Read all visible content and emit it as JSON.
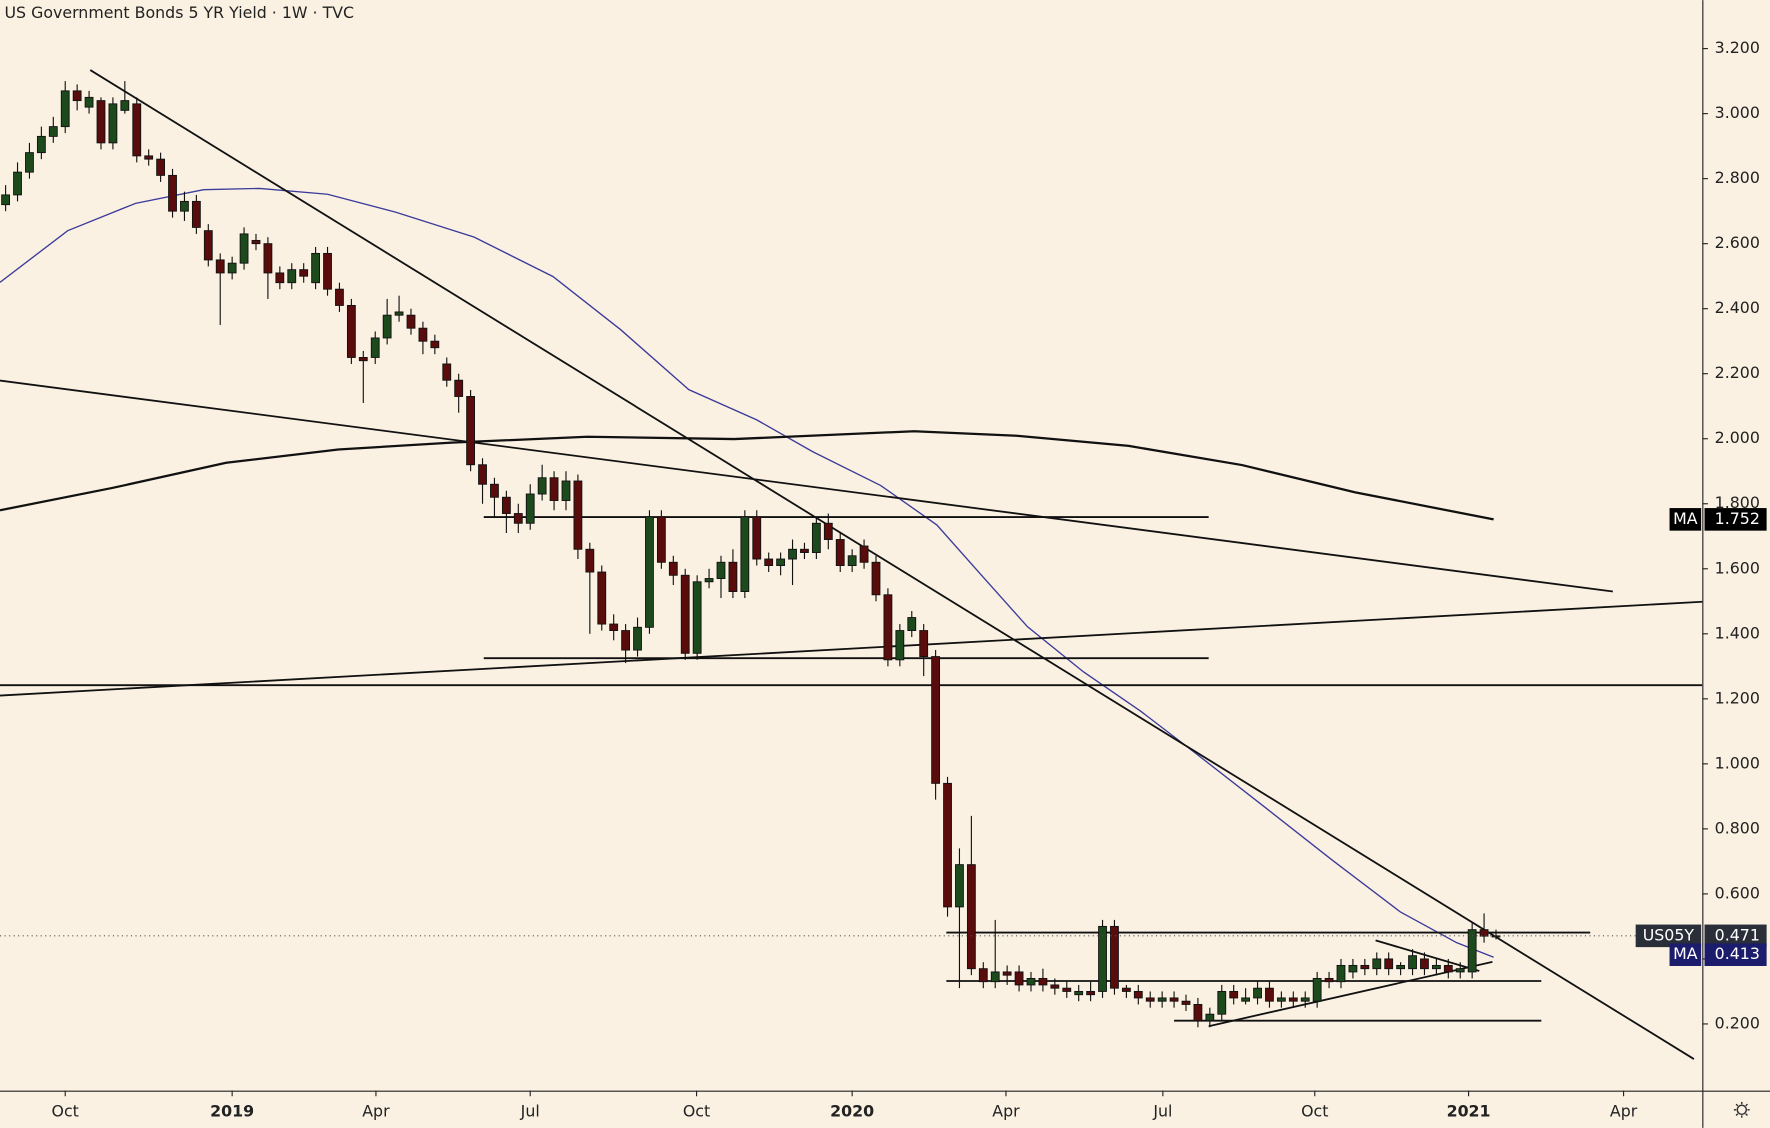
{
  "chart_data": {
    "type": "candlestick",
    "title": "US Government Bonds 5 YR Yield · 1W · TVC",
    "up_color": "#1d4a1d",
    "down_color": "#5a0c0c",
    "open": [
      2.72,
      2.75,
      2.82,
      2.88,
      2.93,
      2.96,
      3.07,
      3.02,
      3.04,
      2.91,
      3.01,
      3.03,
      2.87,
      2.86,
      2.81,
      2.7,
      2.73,
      2.64,
      2.55,
      2.51,
      2.54,
      2.61,
      2.6,
      2.51,
      2.48,
      2.52,
      2.48,
      2.57,
      2.46,
      2.41,
      2.25,
      2.25,
      2.31,
      2.38,
      2.38,
      2.34,
      2.3,
      2.23,
      2.18,
      2.13,
      1.92,
      1.86,
      1.82,
      1.77,
      1.74,
      1.83,
      1.88,
      1.81,
      1.87,
      1.66,
      1.59,
      1.43,
      1.41,
      1.35,
      1.42,
      1.76,
      1.62,
      1.58,
      1.34,
      1.56,
      1.57,
      1.62,
      1.53,
      1.76,
      1.63,
      1.61,
      1.63,
      1.66,
      1.65,
      1.74,
      1.69,
      1.61,
      1.67,
      1.62,
      1.52,
      1.32,
      1.41,
      1.41,
      1.33,
      0.94,
      0.56,
      0.69,
      0.37,
      0.33,
      0.36,
      0.36,
      0.32,
      0.34,
      0.32,
      0.31,
      0.29,
      0.3,
      0.3,
      0.5,
      0.31,
      0.3,
      0.28,
      0.27,
      0.28,
      0.27,
      0.26,
      0.21,
      0.23,
      0.3,
      0.27,
      0.28,
      0.31,
      0.27,
      0.28,
      0.27,
      0.27,
      0.34,
      0.33,
      0.36,
      0.38,
      0.37,
      0.4,
      0.37,
      0.37,
      0.4,
      0.37,
      0.38,
      0.36,
      0.36,
      0.49,
      0.47
    ],
    "high": [
      2.78,
      2.85,
      2.91,
      2.96,
      2.99,
      3.1,
      3.09,
      3.07,
      3.05,
      3.05,
      3.1,
      3.05,
      2.89,
      2.88,
      2.83,
      2.76,
      2.75,
      2.66,
      2.57,
      2.56,
      2.65,
      2.63,
      2.62,
      2.53,
      2.54,
      2.54,
      2.59,
      2.59,
      2.48,
      2.43,
      2.27,
      2.33,
      2.43,
      2.44,
      2.4,
      2.36,
      2.32,
      2.25,
      2.2,
      2.15,
      1.94,
      1.88,
      1.84,
      1.8,
      1.86,
      1.92,
      1.9,
      1.9,
      1.89,
      1.68,
      1.61,
      1.46,
      1.43,
      1.45,
      1.78,
      1.78,
      1.64,
      1.6,
      1.58,
      1.6,
      1.64,
      1.66,
      1.78,
      1.78,
      1.65,
      1.65,
      1.69,
      1.68,
      1.76,
      1.77,
      1.71,
      1.66,
      1.69,
      1.64,
      1.54,
      1.43,
      1.47,
      1.43,
      1.35,
      0.96,
      0.74,
      0.84,
      0.39,
      0.52,
      0.38,
      0.38,
      0.36,
      0.37,
      0.34,
      0.33,
      0.32,
      0.33,
      0.52,
      0.52,
      0.32,
      0.32,
      0.3,
      0.3,
      0.3,
      0.29,
      0.28,
      0.25,
      0.32,
      0.32,
      0.31,
      0.33,
      0.33,
      0.3,
      0.3,
      0.3,
      0.36,
      0.36,
      0.4,
      0.4,
      0.4,
      0.42,
      0.42,
      0.39,
      0.43,
      0.42,
      0.4,
      0.4,
      0.39,
      0.51,
      0.54,
      0.49
    ],
    "low": [
      2.7,
      2.73,
      2.8,
      2.86,
      2.91,
      2.94,
      3.01,
      3.0,
      2.89,
      2.89,
      3.0,
      2.85,
      2.84,
      2.79,
      2.68,
      2.67,
      2.63,
      2.53,
      2.35,
      2.49,
      2.52,
      2.58,
      2.43,
      2.46,
      2.46,
      2.48,
      2.46,
      2.44,
      2.39,
      2.23,
      2.11,
      2.23,
      2.29,
      2.36,
      2.32,
      2.26,
      2.26,
      2.16,
      2.08,
      1.9,
      1.8,
      1.76,
      1.71,
      1.71,
      1.72,
      1.81,
      1.78,
      1.78,
      1.63,
      1.4,
      1.41,
      1.38,
      1.31,
      1.33,
      1.4,
      1.6,
      1.55,
      1.32,
      1.32,
      1.54,
      1.51,
      1.51,
      1.51,
      1.61,
      1.59,
      1.58,
      1.55,
      1.63,
      1.63,
      1.66,
      1.59,
      1.59,
      1.6,
      1.5,
      1.3,
      1.3,
      1.39,
      1.27,
      0.89,
      0.53,
      0.31,
      0.35,
      0.31,
      0.31,
      0.32,
      0.3,
      0.3,
      0.3,
      0.29,
      0.28,
      0.27,
      0.27,
      0.28,
      0.29,
      0.28,
      0.26,
      0.25,
      0.25,
      0.25,
      0.24,
      0.19,
      0.19,
      0.21,
      0.26,
      0.26,
      0.26,
      0.25,
      0.25,
      0.25,
      0.25,
      0.25,
      0.31,
      0.31,
      0.34,
      0.35,
      0.35,
      0.35,
      0.35,
      0.35,
      0.35,
      0.35,
      0.34,
      0.34,
      0.34,
      0.45,
      0.46
    ],
    "close": [
      2.75,
      2.82,
      2.88,
      2.93,
      2.96,
      3.07,
      3.04,
      3.05,
      2.91,
      3.03,
      3.04,
      2.87,
      2.86,
      2.81,
      2.7,
      2.73,
      2.65,
      2.55,
      2.51,
      2.54,
      2.63,
      2.6,
      2.51,
      2.48,
      2.52,
      2.5,
      2.57,
      2.46,
      2.41,
      2.25,
      2.24,
      2.31,
      2.38,
      2.39,
      2.34,
      2.3,
      2.28,
      2.18,
      2.13,
      1.92,
      1.86,
      1.82,
      1.77,
      1.74,
      1.83,
      1.88,
      1.81,
      1.87,
      1.66,
      1.59,
      1.43,
      1.41,
      1.35,
      1.42,
      1.76,
      1.62,
      1.58,
      1.34,
      1.56,
      1.57,
      1.62,
      1.53,
      1.76,
      1.63,
      1.61,
      1.63,
      1.66,
      1.65,
      1.74,
      1.69,
      1.61,
      1.64,
      1.62,
      1.52,
      1.32,
      1.41,
      1.45,
      1.33,
      0.94,
      0.56,
      0.69,
      0.37,
      0.33,
      0.36,
      0.35,
      0.32,
      0.34,
      0.32,
      0.31,
      0.3,
      0.3,
      0.29,
      0.5,
      0.31,
      0.3,
      0.28,
      0.27,
      0.28,
      0.27,
      0.26,
      0.21,
      0.23,
      0.3,
      0.28,
      0.28,
      0.31,
      0.27,
      0.28,
      0.27,
      0.28,
      0.34,
      0.33,
      0.38,
      0.38,
      0.37,
      0.4,
      0.37,
      0.38,
      0.41,
      0.37,
      0.38,
      0.36,
      0.37,
      0.49,
      0.47,
      0.471
    ],
    "moving_averages": [
      {
        "name": "MA",
        "color": "#3b3b9a",
        "x": [
          -0.47,
          5.21,
          10.9,
          16.6,
          21.3,
          27.0,
          32.7,
          39.3,
          45.9,
          51.6,
          57.3,
          63.0,
          67.7,
          73.4,
          78.1,
          81.9,
          85.7,
          90.4,
          95.2,
          99.9,
          105.6,
          111.3,
          117.0,
          121.7,
          124.8
        ],
        "values": [
          2.481,
          2.64,
          2.724,
          2.766,
          2.77,
          2.752,
          2.697,
          2.62,
          2.499,
          2.335,
          2.151,
          2.058,
          1.96,
          1.856,
          1.735,
          1.578,
          1.422,
          1.283,
          1.162,
          1.03,
          0.867,
          0.703,
          0.544,
          0.45,
          0.405
        ]
      },
      {
        "name": "MA",
        "color": "#111111",
        "x": [
          -0.47,
          9.0,
          18.5,
          27.9,
          37.4,
          48.8,
          61.1,
          76.2,
          84.8,
          94.2,
          103.7,
          113.2,
          124.8
        ],
        "values": [
          1.78,
          1.849,
          1.926,
          1.967,
          1.988,
          2.006,
          1.999,
          2.023,
          2.009,
          1.978,
          1.919,
          1.835,
          1.752
        ]
      }
    ],
    "trendlines": [
      {
        "x": [
          7.1,
          141.6
        ],
        "values": [
          3.134,
          0.092
        ]
      },
      {
        "x": [
          -0.47,
          134.8
        ],
        "values": [
          2.179,
          1.53
        ]
      },
      {
        "x": [
          -0.47,
          142.5
        ],
        "values": [
          1.21,
          1.499
        ]
      },
      {
        "x": [
          -0.47,
          142.3
        ],
        "values": [
          1.242,
          1.242
        ]
      },
      {
        "x": [
          40.1,
          100.9
        ],
        "values": [
          1.759,
          1.759
        ]
      },
      {
        "x": [
          40.1,
          100.9
        ],
        "values": [
          1.325,
          1.325
        ]
      },
      {
        "x": [
          78.9,
          132.9
        ],
        "values": [
          0.481,
          0.481
        ]
      },
      {
        "x": [
          78.9,
          128.8
        ],
        "values": [
          0.332,
          0.332
        ]
      },
      {
        "x": [
          98.0,
          128.8
        ],
        "values": [
          0.21,
          0.21
        ]
      },
      {
        "x": [
          100.9,
          124.7
        ],
        "values": [
          0.193,
          0.391
        ]
      },
      {
        "x": [
          114.9,
          123.6
        ],
        "values": [
          0.457,
          0.363
        ]
      }
    ],
    "price_labels": [
      {
        "name": "US05Y",
        "value": 0.471,
        "color": "#2a2e39",
        "dotted": true
      },
      {
        "name": "MA",
        "value": 1.752,
        "color": "#000000"
      },
      {
        "name": "MA",
        "value": 0.413,
        "color": "#1c1c6c"
      }
    ],
    "xlim": [
      -0.47,
      142.3
    ],
    "ylim": [
      -0.005,
      3.349
    ],
    "xticks": [
      {
        "value": 5.0,
        "label": "Oct"
      },
      {
        "value": 19.0,
        "label": "2019"
      },
      {
        "value": 31.06,
        "label": "Apr"
      },
      {
        "value": 44.0,
        "label": "Jul"
      },
      {
        "value": 57.95,
        "label": "Oct"
      },
      {
        "value": 71.0,
        "label": "2020"
      },
      {
        "value": 83.9,
        "label": "Apr"
      },
      {
        "value": 97.06,
        "label": "Jul"
      },
      {
        "value": 109.8,
        "label": "Oct"
      },
      {
        "value": 122.7,
        "label": "2021"
      },
      {
        "value": 135.7,
        "label": "Apr"
      }
    ],
    "yticks": [
      {
        "value": 0.2,
        "label": "0.200"
      },
      {
        "value": 0.4,
        "label": "0.400"
      },
      {
        "value": 0.6,
        "label": "0.600"
      },
      {
        "value": 0.8,
        "label": "0.800"
      },
      {
        "value": 1.0,
        "label": "1.000"
      },
      {
        "value": 1.2,
        "label": "1.200"
      },
      {
        "value": 1.4,
        "label": "1.400"
      },
      {
        "value": 1.6,
        "label": "1.600"
      },
      {
        "value": 1.8,
        "label": "1.800"
      },
      {
        "value": 2.0,
        "label": "2.000"
      },
      {
        "value": 2.2,
        "label": "2.200"
      },
      {
        "value": 2.4,
        "label": "2.400"
      },
      {
        "value": 2.6,
        "label": "2.600"
      },
      {
        "value": 2.8,
        "label": "2.800"
      },
      {
        "value": 3.0,
        "label": "3.000"
      },
      {
        "value": 3.2,
        "label": "3.200"
      }
    ],
    "grid": false
  }
}
